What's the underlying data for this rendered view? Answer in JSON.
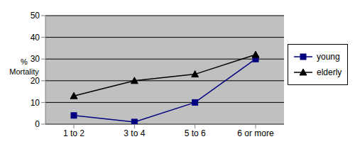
{
  "chart_data": {
    "type": "line",
    "y_label": "% Mortality",
    "categories": [
      "1 to 2",
      "3 to 4",
      "5 to 6",
      "6 or more"
    ],
    "series": [
      {
        "name": "young",
        "color": "#000080",
        "marker": "square",
        "values": [
          4,
          1,
          10,
          30
        ]
      },
      {
        "name": "elderly",
        "color": "#000000",
        "marker": "triangle",
        "values": [
          13,
          20,
          23,
          32
        ]
      }
    ],
    "ylim": [
      0,
      50
    ],
    "yticks": [
      0,
      10,
      20,
      30,
      40,
      50
    ],
    "grid": true,
    "legend": "right"
  }
}
